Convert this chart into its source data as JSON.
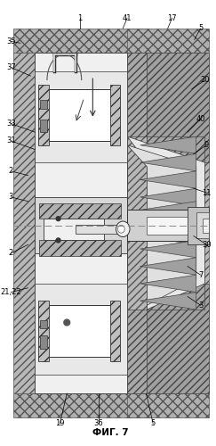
{
  "title": "ФИГ. 7",
  "bg_color": "#ffffff",
  "hatch_dense": "////",
  "hatch_cross": "xxxx",
  "hatch_diag": "///",
  "c_outer_hatch": "#aaaaaa",
  "c_inner_wall": "#bbbbbb",
  "c_white": "#ffffff",
  "c_light": "#e8e8e8",
  "c_mid": "#c0c0c0",
  "c_dark": "#888888",
  "c_darkgray": "#707070",
  "c_line": "#000000",
  "c_dashed": "#777777"
}
